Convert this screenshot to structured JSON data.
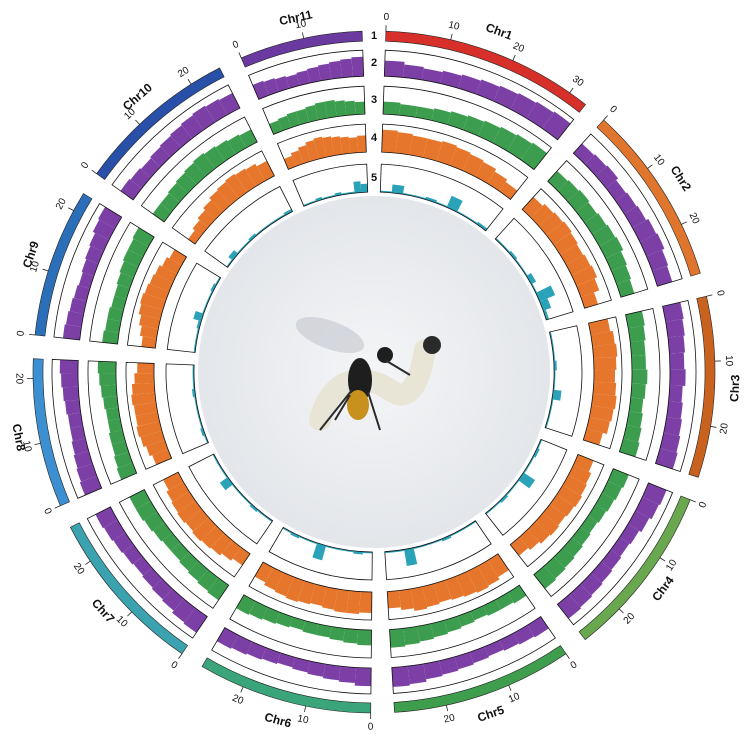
{
  "chart_data": {
    "type": "circos",
    "ideogram_label": "1",
    "chromosomes": [
      {
        "name": "Chr1",
        "color": "#d7302a",
        "length": 33,
        "ticks": [
          0,
          10,
          20,
          30
        ]
      },
      {
        "name": "Chr2",
        "color": "#e0752d",
        "length": 28,
        "ticks": [
          0,
          10,
          20
        ]
      },
      {
        "name": "Chr3",
        "color": "#c9621e",
        "length": 28,
        "ticks": [
          0,
          10,
          20
        ]
      },
      {
        "name": "Chr4",
        "color": "#6aa84f",
        "length": 27,
        "ticks": [
          0,
          10,
          20
        ]
      },
      {
        "name": "Chr5",
        "color": "#3e9e4e",
        "length": 28,
        "ticks": [
          0,
          10,
          20
        ]
      },
      {
        "name": "Chr6",
        "color": "#3aa57a",
        "length": 27,
        "ticks": [
          0,
          10,
          20
        ]
      },
      {
        "name": "Chr7",
        "color": "#3ba2b0",
        "length": 26,
        "ticks": [
          0,
          10,
          20
        ]
      },
      {
        "name": "Chr8",
        "color": "#3c8fd0",
        "length": 23,
        "ticks": [
          0,
          10,
          20
        ]
      },
      {
        "name": "Chr9",
        "color": "#2c6fb9",
        "length": 23,
        "ticks": [
          0,
          10,
          20
        ]
      },
      {
        "name": "Chr10",
        "color": "#2850a8",
        "length": 25,
        "ticks": [
          0,
          10,
          20
        ]
      },
      {
        "name": "Chr11",
        "color": "#6a3aa0",
        "length": 19,
        "ticks": [
          0,
          10
        ]
      }
    ],
    "tracks": [
      {
        "label": "2",
        "color": "#7b3fa6",
        "ylim": [
          0,
          1
        ],
        "values": [
          [
            0.6,
            0.5,
            0.45,
            0.5,
            0.55,
            0.6,
            0.65,
            0.7,
            0.75,
            0.8
          ],
          [
            0.5,
            0.55,
            0.6,
            0.5,
            0.55,
            0.6,
            0.7,
            0.75,
            0.65,
            0.6
          ],
          [
            0.7,
            0.65,
            0.6,
            0.55,
            0.6,
            0.5,
            0.55,
            0.6,
            0.65,
            0.7
          ],
          [
            0.75,
            0.7,
            0.6,
            0.5,
            0.45,
            0.5,
            0.55,
            0.6,
            0.65,
            0.7
          ],
          [
            0.55,
            0.5,
            0.45,
            0.4,
            0.45,
            0.5,
            0.55,
            0.6,
            0.7,
            0.75
          ],
          [
            0.7,
            0.6,
            0.55,
            0.5,
            0.45,
            0.4,
            0.45,
            0.5,
            0.55,
            0.6
          ],
          [
            0.75,
            0.7,
            0.6,
            0.55,
            0.5,
            0.45,
            0.5,
            0.55,
            0.6,
            0.65
          ],
          [
            0.7,
            0.65,
            0.6,
            0.55,
            0.5,
            0.5,
            0.55,
            0.6,
            0.65,
            0.7
          ],
          [
            0.65,
            0.6,
            0.55,
            0.5,
            0.45,
            0.5,
            0.55,
            0.6,
            0.7,
            0.75
          ],
          [
            0.6,
            0.55,
            0.5,
            0.55,
            0.6,
            0.65,
            0.7,
            0.75,
            0.7,
            0.65
          ],
          [
            0.6,
            0.55,
            0.5,
            0.45,
            0.5,
            0.55,
            0.6,
            0.65,
            0.7,
            0.75
          ]
        ]
      },
      {
        "label": "3",
        "color": "#3d9d4f",
        "ylim": [
          0,
          1
        ],
        "values": [
          [
            0.45,
            0.4,
            0.4,
            0.45,
            0.5,
            0.55,
            0.6,
            0.65,
            0.7,
            0.75
          ],
          [
            0.5,
            0.55,
            0.6,
            0.55,
            0.6,
            0.65,
            0.7,
            0.6,
            0.55,
            0.5
          ],
          [
            0.6,
            0.55,
            0.5,
            0.5,
            0.55,
            0.5,
            0.45,
            0.5,
            0.55,
            0.6
          ],
          [
            0.6,
            0.55,
            0.5,
            0.45,
            0.4,
            0.45,
            0.5,
            0.55,
            0.6,
            0.65
          ],
          [
            0.45,
            0.4,
            0.4,
            0.35,
            0.4,
            0.45,
            0.5,
            0.55,
            0.6,
            0.65
          ],
          [
            0.55,
            0.5,
            0.45,
            0.4,
            0.4,
            0.35,
            0.4,
            0.45,
            0.5,
            0.55
          ],
          [
            0.65,
            0.6,
            0.55,
            0.5,
            0.45,
            0.45,
            0.5,
            0.55,
            0.6,
            0.6
          ],
          [
            0.6,
            0.55,
            0.5,
            0.5,
            0.45,
            0.45,
            0.5,
            0.55,
            0.6,
            0.65
          ],
          [
            0.55,
            0.5,
            0.5,
            0.45,
            0.45,
            0.5,
            0.55,
            0.6,
            0.6,
            0.65
          ],
          [
            0.5,
            0.5,
            0.55,
            0.6,
            0.65,
            0.7,
            0.65,
            0.6,
            0.55,
            0.5
          ],
          [
            0.4,
            0.45,
            0.5,
            0.5,
            0.55,
            0.6,
            0.6,
            0.55,
            0.5,
            0.45
          ]
        ]
      },
      {
        "label": "4",
        "color": "#e5762b",
        "ylim": [
          0,
          1
        ],
        "values": [
          [
            0.8,
            0.75,
            0.7,
            0.7,
            0.75,
            0.7,
            0.65,
            0.6,
            0.5,
            0.4
          ],
          [
            0.6,
            0.7,
            0.75,
            0.8,
            0.75,
            0.7,
            0.75,
            0.8,
            0.7,
            0.5
          ],
          [
            0.7,
            0.8,
            0.85,
            0.8,
            0.75,
            0.8,
            0.85,
            0.8,
            0.75,
            0.6
          ],
          [
            0.6,
            0.7,
            0.75,
            0.8,
            0.75,
            0.7,
            0.75,
            0.7,
            0.6,
            0.5
          ],
          [
            0.7,
            0.8,
            0.85,
            0.8,
            0.75,
            0.7,
            0.75,
            0.8,
            0.7,
            0.6
          ],
          [
            0.75,
            0.8,
            0.8,
            0.75,
            0.7,
            0.75,
            0.8,
            0.75,
            0.7,
            0.6
          ],
          [
            0.5,
            0.6,
            0.7,
            0.75,
            0.8,
            0.75,
            0.8,
            0.75,
            0.7,
            0.6
          ],
          [
            0.6,
            0.7,
            0.8,
            0.85,
            0.8,
            0.8,
            0.85,
            0.8,
            0.7,
            0.6
          ],
          [
            0.5,
            0.6,
            0.7,
            0.8,
            0.85,
            0.8,
            0.75,
            0.7,
            0.6,
            0.5
          ],
          [
            0.3,
            0.4,
            0.5,
            0.6,
            0.7,
            0.75,
            0.8,
            0.75,
            0.7,
            0.6
          ],
          [
            0.4,
            0.5,
            0.6,
            0.7,
            0.75,
            0.7,
            0.65,
            0.6,
            0.55,
            0.6
          ]
        ]
      },
      {
        "label": "5",
        "color": "#2aa3b9",
        "ylim": [
          0,
          1
        ],
        "values": [
          [
            0.05,
            0.3,
            0.05,
            0.05,
            0.1,
            0.05,
            0.45,
            0.05,
            0.05,
            0.1
          ],
          [
            0.05,
            0.05,
            0.1,
            0.05,
            0.05,
            0.2,
            0.05,
            0.6,
            0.3,
            0.1
          ],
          [
            0.05,
            0.05,
            0.05,
            0.1,
            0.05,
            0.05,
            0.3,
            0.05,
            0.05,
            0.05
          ],
          [
            0.05,
            0.1,
            0.05,
            0.05,
            0.5,
            0.05,
            0.05,
            0.1,
            0.05,
            0.05
          ],
          [
            0.05,
            0.05,
            0.05,
            0.1,
            0.05,
            0.05,
            0.05,
            0.6,
            0.05,
            0.05
          ],
          [
            0.05,
            0.1,
            0.05,
            0.05,
            0.05,
            0.55,
            0.05,
            0.05,
            0.1,
            0.05
          ],
          [
            0.05,
            0.05,
            0.1,
            0.05,
            0.05,
            0.05,
            0.35,
            0.05,
            0.05,
            0.05
          ],
          [
            0.05,
            0.1,
            0.05,
            0.05,
            0.05,
            0.05,
            0.1,
            0.05,
            0.05,
            0.05
          ],
          [
            0.05,
            0.05,
            0.05,
            0.1,
            0.3,
            0.05,
            0.05,
            0.05,
            0.1,
            0.05
          ],
          [
            0.05,
            0.2,
            0.05,
            0.05,
            0.1,
            0.05,
            0.05,
            0.05,
            0.05,
            0.1
          ],
          [
            0.05,
            0.05,
            0.1,
            0.05,
            0.05,
            0.1,
            0.05,
            0.05,
            0.4,
            0.3
          ]
        ]
      }
    ]
  }
}
